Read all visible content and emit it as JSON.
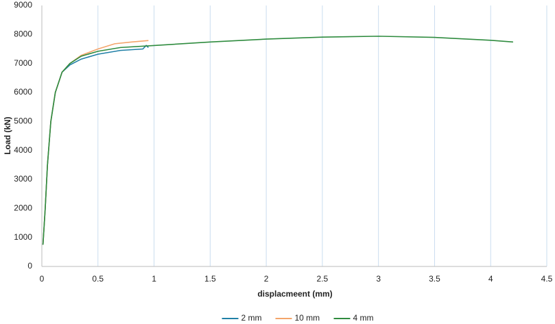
{
  "chart_data": {
    "type": "line",
    "x_label": "displacmeent (mm)",
    "y_label": "Load (kN)",
    "xlim": [
      0,
      4.5
    ],
    "xticks": [
      0,
      0.5,
      1,
      1.5,
      2,
      2.5,
      3,
      3.5,
      4,
      4.5
    ],
    "ylim": [
      0,
      9000
    ],
    "yticks": [
      0,
      1000,
      2000,
      3000,
      4000,
      5000,
      6000,
      7000,
      8000,
      9000
    ],
    "grid": "x",
    "legend": "bottom",
    "series": [
      {
        "name": "2 mm",
        "color": "#1f7fa6",
        "x": [
          0.01,
          0.03,
          0.05,
          0.08,
          0.12,
          0.18,
          0.25,
          0.35,
          0.5,
          0.7,
          0.9,
          0.93,
          0.95
        ],
        "values": [
          750,
          2000,
          3500,
          5000,
          6000,
          6700,
          6950,
          7150,
          7320,
          7450,
          7500,
          7620,
          7550
        ]
      },
      {
        "name": "10 mm",
        "color": "#f4a46a",
        "x": [
          0.01,
          0.03,
          0.05,
          0.08,
          0.12,
          0.18,
          0.25,
          0.35,
          0.5,
          0.65,
          0.8,
          0.95
        ],
        "values": [
          750,
          2000,
          3500,
          5000,
          6000,
          6700,
          7000,
          7280,
          7500,
          7680,
          7740,
          7790
        ]
      },
      {
        "name": "4 mm",
        "color": "#2e8b3e",
        "x": [
          0.01,
          0.03,
          0.05,
          0.08,
          0.12,
          0.18,
          0.25,
          0.35,
          0.5,
          0.7,
          1,
          1.5,
          2,
          2.5,
          3,
          3.5,
          4,
          4.2
        ],
        "values": [
          750,
          2000,
          3500,
          5000,
          6000,
          6700,
          7000,
          7250,
          7420,
          7550,
          7620,
          7740,
          7840,
          7910,
          7940,
          7900,
          7800,
          7740
        ]
      }
    ]
  }
}
